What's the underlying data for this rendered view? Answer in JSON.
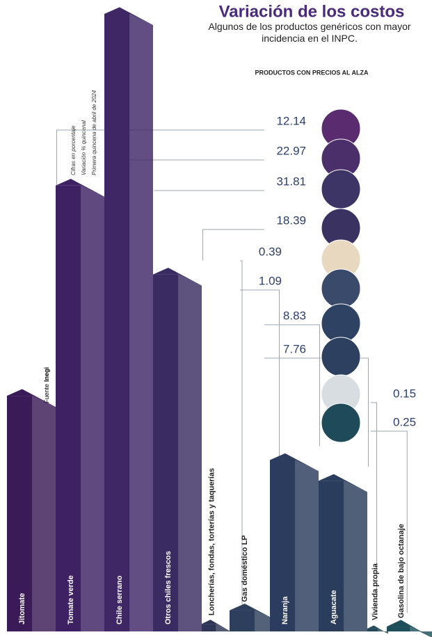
{
  "chart_data": {
    "type": "bar",
    "title": "Variación de los costos",
    "subtitle": "Algunos de los productos genéricos con mayor incidencia en el INPC.",
    "heading": "PRODUCTOS CON PRECIOS AL ALZA",
    "notes": [
      "Cifras en porcentaje",
      "Variación % quincenal",
      "Primera quincena de abril de 2024"
    ],
    "source": "Fuente",
    "source_name": "Inegi",
    "categories": [
      "Jitomate",
      "Tomate verde",
      "Chile serrano",
      "Otros chiles frescos",
      "Loncherías, fondas, torterías y taquerías",
      "Gas doméstico LP",
      "Naranja",
      "Aguacate",
      "Vivienda propia",
      "Gasolina de bajo octanaje"
    ],
    "values": [
      12.14,
      22.97,
      31.81,
      18.39,
      0.39,
      1.09,
      8.83,
      7.76,
      0.15,
      0.25
    ],
    "colors": [
      "#3a1a57",
      "#3d2163",
      "#3f2766",
      "#3a2c63",
      "#2e3556",
      "#2d3f5c",
      "#2c3c5e",
      "#2b3d5c",
      "#23495a",
      "#1f4f5a"
    ]
  }
}
